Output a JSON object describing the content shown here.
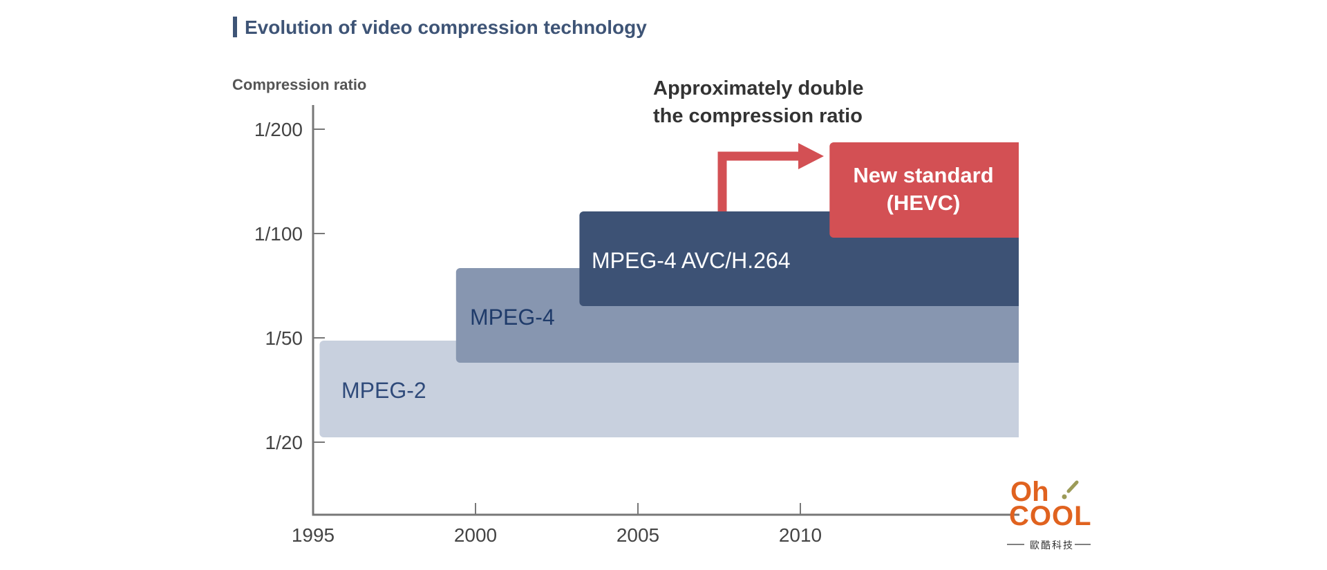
{
  "title": "Evolution of video compression technology",
  "chart_data": {
    "type": "bar",
    "ylabel": "Compression ratio",
    "x_ticks": [
      "1995",
      "2000",
      "2005",
      "2010"
    ],
    "y_ticks": [
      "1/20",
      "1/50",
      "1/100",
      "1/200"
    ],
    "xlim": [
      1995,
      2016.5
    ],
    "series": [
      {
        "name": "MPEG-2",
        "start_year": 1995.2,
        "level": "1/50",
        "color": "#c8d0de",
        "label_color": "#2f4a7a"
      },
      {
        "name": "MPEG-4",
        "start_year": 1999.4,
        "level": "1/80",
        "color": "#8796b0",
        "label_color": "#1f3b6a"
      },
      {
        "name": "MPEG-4 AVC/H.264",
        "start_year": 2003.2,
        "level": "1/110",
        "color": "#3d5275",
        "label_color": "#ffffff"
      },
      {
        "name": "New standard (HEVC)",
        "label_lines": [
          "New standard",
          "(HEVC)"
        ],
        "start_year": 2010.9,
        "level": "1/200",
        "color": "#d35054",
        "label_color": "#ffffff"
      }
    ],
    "annotation": {
      "lines": [
        "Approximately double",
        "the compression ratio"
      ],
      "arrow_color": "#d35054"
    }
  },
  "logo": {
    "line1": "Oh",
    "line2": "COOL",
    "subtitle": "歐酷科技",
    "color_orange": "#e0621f",
    "color_olive": "#9c9b58"
  }
}
